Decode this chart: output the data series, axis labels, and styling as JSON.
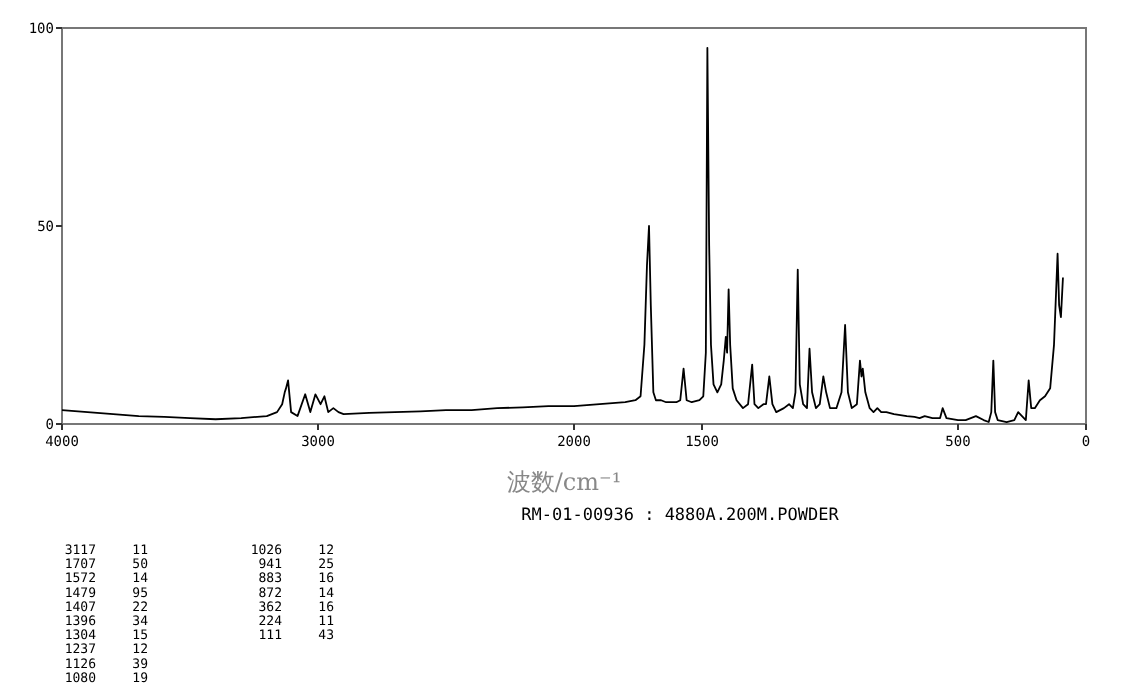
{
  "chart_data": {
    "type": "line",
    "xlabel": "波数/cm⁻¹",
    "xlim": [
      4000,
      0
    ],
    "ylim": [
      0,
      100
    ],
    "xticks": [
      4000,
      3000,
      2000,
      1500,
      500,
      0
    ],
    "yticks": [
      0,
      50,
      100
    ],
    "marker": "none",
    "line_style": "solid",
    "series": [
      {
        "color": "#000000",
        "x": [
          4000,
          3900,
          3800,
          3700,
          3600,
          3500,
          3400,
          3300,
          3200,
          3160,
          3140,
          3130,
          3125,
          3117,
          3105,
          3080,
          3050,
          3030,
          3010,
          2990,
          2975,
          2960,
          2940,
          2920,
          2900,
          2800,
          2700,
          2600,
          2500,
          2400,
          2300,
          2200,
          2100,
          2000,
          1900,
          1800,
          1760,
          1740,
          1725,
          1715,
          1707,
          1700,
          1690,
          1680,
          1660,
          1640,
          1600,
          1585,
          1572,
          1560,
          1540,
          1510,
          1495,
          1485,
          1479,
          1472,
          1465,
          1455,
          1440,
          1425,
          1415,
          1407,
          1402,
          1396,
          1390,
          1380,
          1365,
          1340,
          1320,
          1304,
          1295,
          1280,
          1260,
          1250,
          1237,
          1225,
          1210,
          1180,
          1160,
          1145,
          1135,
          1126,
          1118,
          1105,
          1090,
          1080,
          1070,
          1055,
          1040,
          1026,
          1015,
          1000,
          975,
          955,
          941,
          930,
          915,
          895,
          883,
          877,
          872,
          862,
          845,
          830,
          815,
          800,
          780,
          750,
          700,
          670,
          650,
          630,
          600,
          570,
          560,
          545,
          500,
          470,
          430,
          400,
          380,
          370,
          362,
          355,
          345,
          310,
          280,
          265,
          250,
          235,
          224,
          214,
          200,
          180,
          160,
          140,
          125,
          111,
          105,
          98,
          90
        ],
        "values": [
          3.5,
          3,
          2.5,
          2,
          1.8,
          1.5,
          1.2,
          1.5,
          2,
          3,
          5,
          8,
          9,
          11,
          3,
          2,
          7.5,
          3,
          7.5,
          5,
          7,
          3,
          4,
          3,
          2.5,
          2.8,
          3,
          3.2,
          3.5,
          3.5,
          4,
          4.2,
          4.5,
          4.5,
          5,
          5.5,
          6,
          7,
          20,
          40,
          50,
          30,
          8,
          6,
          6,
          5.5,
          5.5,
          6,
          14,
          6,
          5.5,
          6,
          7,
          18,
          95,
          45,
          20,
          10,
          8,
          10,
          16,
          22,
          18,
          34,
          20,
          9,
          6,
          4,
          5,
          15,
          5,
          4,
          5,
          5,
          12,
          5,
          3,
          4,
          5,
          4,
          8,
          39,
          10,
          5,
          4,
          19,
          8,
          4,
          5,
          12,
          8,
          4,
          4,
          8,
          25,
          8,
          4,
          5,
          16,
          12,
          14,
          8,
          4,
          3,
          4,
          3,
          3,
          2.5,
          2,
          1.8,
          1.5,
          2,
          1.5,
          1.5,
          4,
          1.5,
          1,
          1,
          2,
          1,
          0.5,
          3,
          16,
          3,
          1,
          0.5,
          1,
          3,
          2,
          1,
          11,
          4,
          4,
          6,
          7,
          9,
          20,
          43,
          30,
          27,
          37
        ]
      }
    ],
    "annotations": [
      "RM-01-00936 : 4880A.200M.POWDER",
      "3117",
      "11",
      "1707",
      "50",
      "1572",
      "14",
      "1479",
      "95",
      "1407",
      "22",
      "1396",
      "34",
      "1304",
      "15",
      "1237",
      "12",
      "1126",
      "39",
      "1080",
      "19",
      "1026",
      "12",
      "941",
      "25",
      "883",
      "16",
      "872",
      "14",
      "362",
      "16",
      "224",
      "11",
      "111",
      "43"
    ]
  }
}
